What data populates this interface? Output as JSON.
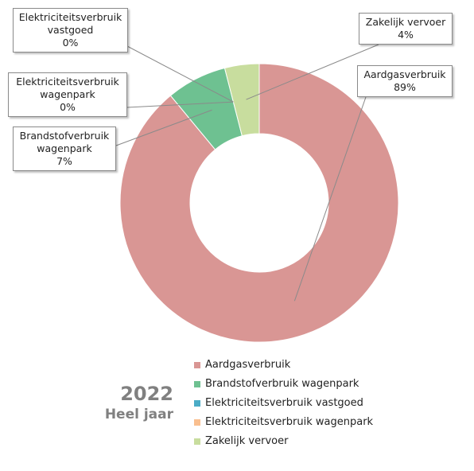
{
  "chart_data": {
    "type": "pie",
    "variant": "donut",
    "categories": [
      "Aardgasverbruik",
      "Brandstofverbruik wagenpark",
      "Elektriciteitsverbruik vastgoed",
      "Elektriciteitsverbruik wagenpark",
      "Zakelijk vervoer"
    ],
    "values": [
      89,
      7,
      0,
      0,
      4
    ],
    "colors": [
      "#d99694",
      "#6ec191",
      "#4bacc6",
      "#f9bf8f",
      "#c8dd9e"
    ],
    "legend_position": "bottom-right"
  },
  "callouts": [
    {
      "line1": "Elektriciteitsverbruik",
      "line2": "vastgoed",
      "line3": "0%"
    },
    {
      "line1": "Zakelijk  vervoer",
      "line2": "4%"
    },
    {
      "line1": "Elektriciteitsverbruik",
      "line2": "wagenpark",
      "line3": "0%"
    },
    {
      "line1": "Aardgasverbruik",
      "line2": "89%"
    },
    {
      "line1": "Brandstofverbruik",
      "line2": "wagenpark",
      "line3": "7%"
    }
  ],
  "legend": [
    "Aardgasverbruik",
    "Brandstofverbruik wagenpark",
    "Elektriciteitsverbruik vastgoed",
    "Elektriciteitsverbruik wagenpark",
    "Zakelijk vervoer"
  ],
  "year": "2022",
  "period": "Heel jaar"
}
